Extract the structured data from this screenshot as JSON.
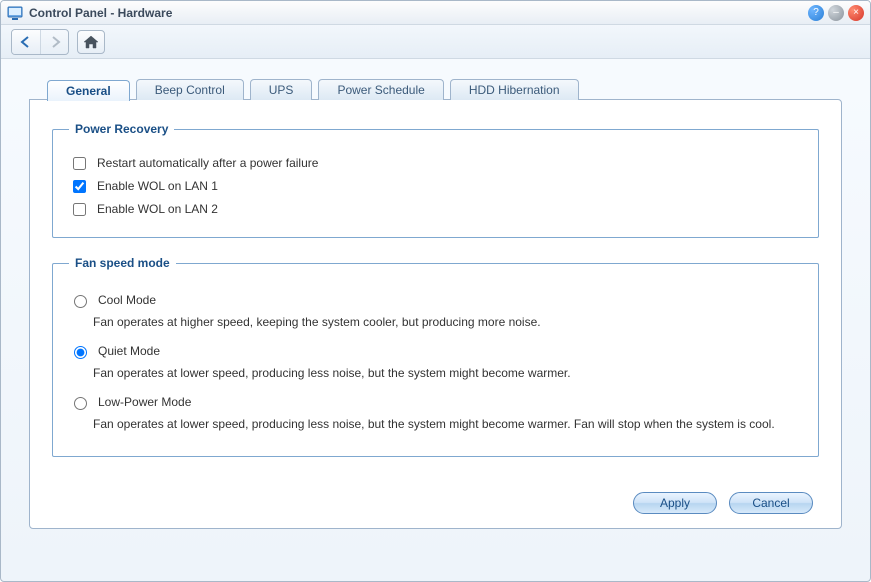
{
  "window": {
    "title": "Control Panel - Hardware"
  },
  "tabs": [
    {
      "label": "General",
      "active": true
    },
    {
      "label": "Beep Control",
      "active": false
    },
    {
      "label": "UPS",
      "active": false
    },
    {
      "label": "Power Schedule",
      "active": false
    },
    {
      "label": "HDD Hibernation",
      "active": false
    }
  ],
  "power_recovery": {
    "legend": "Power Recovery",
    "items": [
      {
        "label": "Restart automatically after a power failure",
        "checked": false
      },
      {
        "label": "Enable WOL on LAN 1",
        "checked": true
      },
      {
        "label": "Enable WOL on LAN 2",
        "checked": false
      }
    ]
  },
  "fan_speed": {
    "legend": "Fan speed mode",
    "selected_index": 1,
    "options": [
      {
        "label": "Cool Mode",
        "desc": "Fan operates at higher speed, keeping the system cooler, but producing more noise."
      },
      {
        "label": "Quiet Mode",
        "desc": "Fan operates at lower speed, producing less noise, but the system might become warmer."
      },
      {
        "label": "Low-Power Mode",
        "desc": "Fan operates at lower speed, producing less noise, but the system might become warmer. Fan will stop when the system is cool."
      }
    ]
  },
  "buttons": {
    "apply": "Apply",
    "cancel": "Cancel"
  },
  "colors": {
    "accent": "#1a4f86",
    "border": "#9fb4cc",
    "fieldset_border": "#7fa8d0"
  }
}
